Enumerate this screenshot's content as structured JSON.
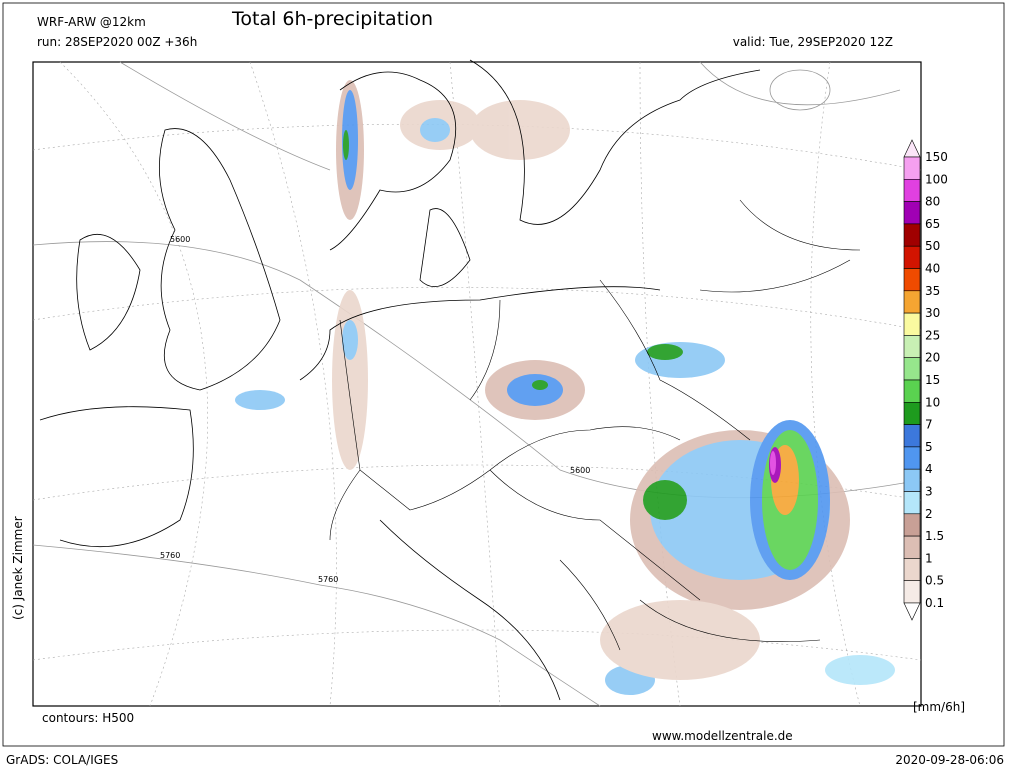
{
  "header": {
    "model": "WRF-ARW @12km",
    "title": "Total 6h-precipitation",
    "run": "run: 28SEP2020 00Z +36h",
    "valid": "valid: Tue, 29SEP2020 12Z"
  },
  "legend": {
    "levels": [
      150,
      100,
      80,
      65,
      50,
      40,
      35,
      30,
      25,
      20,
      15,
      10,
      7,
      5,
      4,
      3,
      2,
      1.5,
      1,
      0.5,
      0.1
    ],
    "colors": [
      "#fbe6f8",
      "#f5a0f0",
      "#e040e0",
      "#a000b4",
      "#a00000",
      "#d21400",
      "#f04b00",
      "#f5a532",
      "#fafaa0",
      "#c8f0b4",
      "#96e68c",
      "#5ad250",
      "#1e9b1e",
      "#3c78dc",
      "#5096f0",
      "#8cc8f5",
      "#b4e6fa",
      "#c8a096",
      "#dcbeb4",
      "#ebd7cd",
      "#f5ebe6",
      "#ffffff"
    ],
    "unit": "[mm/6h]"
  },
  "contour_labels": [
    "5600",
    "5600",
    "5760",
    "5760"
  ],
  "footer": {
    "contours": "contours: H500",
    "site": "www.modellzentrale.de",
    "grads": "GrADS: COLA/IGES",
    "timestamp": "2020-09-28-06:06",
    "copyright": "(c) Janek Zimmer"
  }
}
